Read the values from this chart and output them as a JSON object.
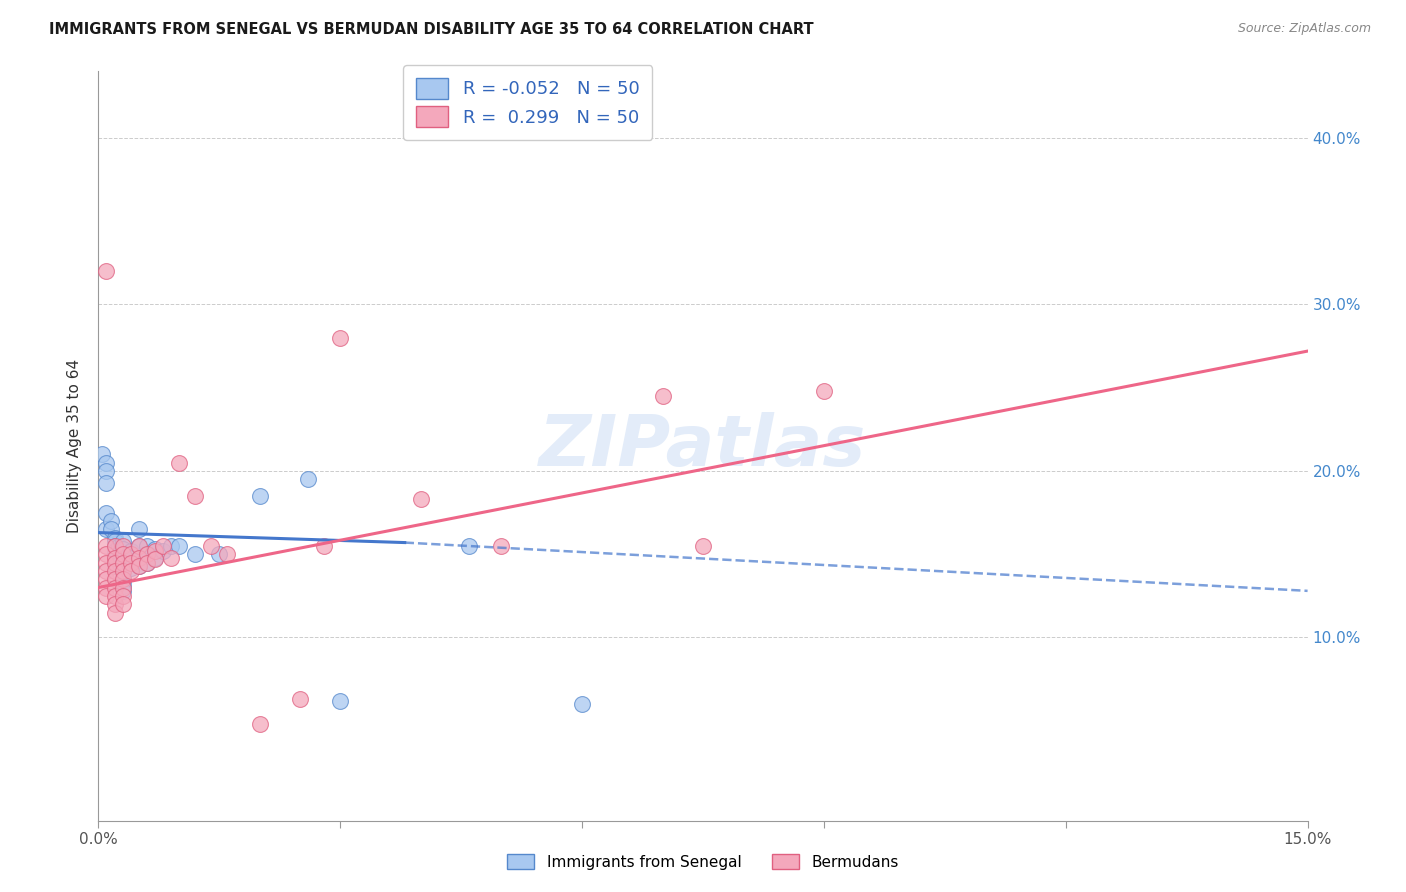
{
  "title": "IMMIGRANTS FROM SENEGAL VS BERMUDAN DISABILITY AGE 35 TO 64 CORRELATION CHART",
  "source": "Source: ZipAtlas.com",
  "ylabel": "Disability Age 35 to 64",
  "xlim": [
    0.0,
    0.15
  ],
  "ylim": [
    -0.01,
    0.44
  ],
  "blue_R": -0.052,
  "blue_N": 50,
  "pink_R": 0.299,
  "pink_N": 50,
  "watermark": "ZIPatlas",
  "blue_color": "#A8C8F0",
  "pink_color": "#F4A8BC",
  "blue_edge_color": "#5588CC",
  "pink_edge_color": "#E06080",
  "blue_line_color": "#4477CC",
  "pink_line_color": "#EE6688",
  "blue_scatter": [
    [
      0.0005,
      0.21
    ],
    [
      0.001,
      0.205
    ],
    [
      0.001,
      0.2
    ],
    [
      0.001,
      0.193
    ],
    [
      0.001,
      0.175
    ],
    [
      0.001,
      0.165
    ],
    [
      0.0015,
      0.17
    ],
    [
      0.0015,
      0.165
    ],
    [
      0.002,
      0.16
    ],
    [
      0.002,
      0.158
    ],
    [
      0.002,
      0.155
    ],
    [
      0.002,
      0.152
    ],
    [
      0.002,
      0.15
    ],
    [
      0.002,
      0.148
    ],
    [
      0.002,
      0.145
    ],
    [
      0.002,
      0.143
    ],
    [
      0.0025,
      0.155
    ],
    [
      0.003,
      0.158
    ],
    [
      0.003,
      0.153
    ],
    [
      0.003,
      0.148
    ],
    [
      0.003,
      0.145
    ],
    [
      0.003,
      0.143
    ],
    [
      0.003,
      0.14
    ],
    [
      0.003,
      0.137
    ],
    [
      0.003,
      0.134
    ],
    [
      0.003,
      0.131
    ],
    [
      0.003,
      0.128
    ],
    [
      0.004,
      0.152
    ],
    [
      0.004,
      0.148
    ],
    [
      0.004,
      0.145
    ],
    [
      0.004,
      0.142
    ],
    [
      0.005,
      0.165
    ],
    [
      0.005,
      0.155
    ],
    [
      0.005,
      0.148
    ],
    [
      0.005,
      0.143
    ],
    [
      0.006,
      0.155
    ],
    [
      0.006,
      0.15
    ],
    [
      0.006,
      0.145
    ],
    [
      0.007,
      0.153
    ],
    [
      0.007,
      0.148
    ],
    [
      0.008,
      0.152
    ],
    [
      0.009,
      0.155
    ],
    [
      0.01,
      0.155
    ],
    [
      0.012,
      0.15
    ],
    [
      0.015,
      0.15
    ],
    [
      0.02,
      0.185
    ],
    [
      0.026,
      0.195
    ],
    [
      0.03,
      0.062
    ],
    [
      0.046,
      0.155
    ],
    [
      0.06,
      0.06
    ]
  ],
  "pink_scatter": [
    [
      0.001,
      0.32
    ],
    [
      0.001,
      0.155
    ],
    [
      0.001,
      0.15
    ],
    [
      0.001,
      0.145
    ],
    [
      0.001,
      0.14
    ],
    [
      0.001,
      0.135
    ],
    [
      0.001,
      0.13
    ],
    [
      0.001,
      0.125
    ],
    [
      0.002,
      0.155
    ],
    [
      0.002,
      0.148
    ],
    [
      0.002,
      0.145
    ],
    [
      0.002,
      0.14
    ],
    [
      0.002,
      0.135
    ],
    [
      0.002,
      0.13
    ],
    [
      0.002,
      0.125
    ],
    [
      0.002,
      0.12
    ],
    [
      0.002,
      0.115
    ],
    [
      0.003,
      0.155
    ],
    [
      0.003,
      0.15
    ],
    [
      0.003,
      0.145
    ],
    [
      0.003,
      0.14
    ],
    [
      0.003,
      0.135
    ],
    [
      0.003,
      0.13
    ],
    [
      0.003,
      0.125
    ],
    [
      0.003,
      0.12
    ],
    [
      0.004,
      0.15
    ],
    [
      0.004,
      0.145
    ],
    [
      0.004,
      0.14
    ],
    [
      0.005,
      0.155
    ],
    [
      0.005,
      0.148
    ],
    [
      0.005,
      0.143
    ],
    [
      0.006,
      0.15
    ],
    [
      0.006,
      0.145
    ],
    [
      0.007,
      0.152
    ],
    [
      0.007,
      0.147
    ],
    [
      0.008,
      0.155
    ],
    [
      0.009,
      0.148
    ],
    [
      0.01,
      0.205
    ],
    [
      0.012,
      0.185
    ],
    [
      0.014,
      0.155
    ],
    [
      0.016,
      0.15
    ],
    [
      0.02,
      0.048
    ],
    [
      0.025,
      0.063
    ],
    [
      0.028,
      0.155
    ],
    [
      0.03,
      0.28
    ],
    [
      0.04,
      0.183
    ],
    [
      0.05,
      0.155
    ],
    [
      0.07,
      0.245
    ],
    [
      0.075,
      0.155
    ],
    [
      0.09,
      0.248
    ]
  ],
  "blue_line_solid": [
    [
      0.0,
      0.163
    ],
    [
      0.038,
      0.157
    ]
  ],
  "blue_line_dash": [
    [
      0.038,
      0.157
    ],
    [
      0.15,
      0.128
    ]
  ],
  "pink_line_solid": [
    [
      0.0,
      0.13
    ],
    [
      0.15,
      0.272
    ]
  ]
}
